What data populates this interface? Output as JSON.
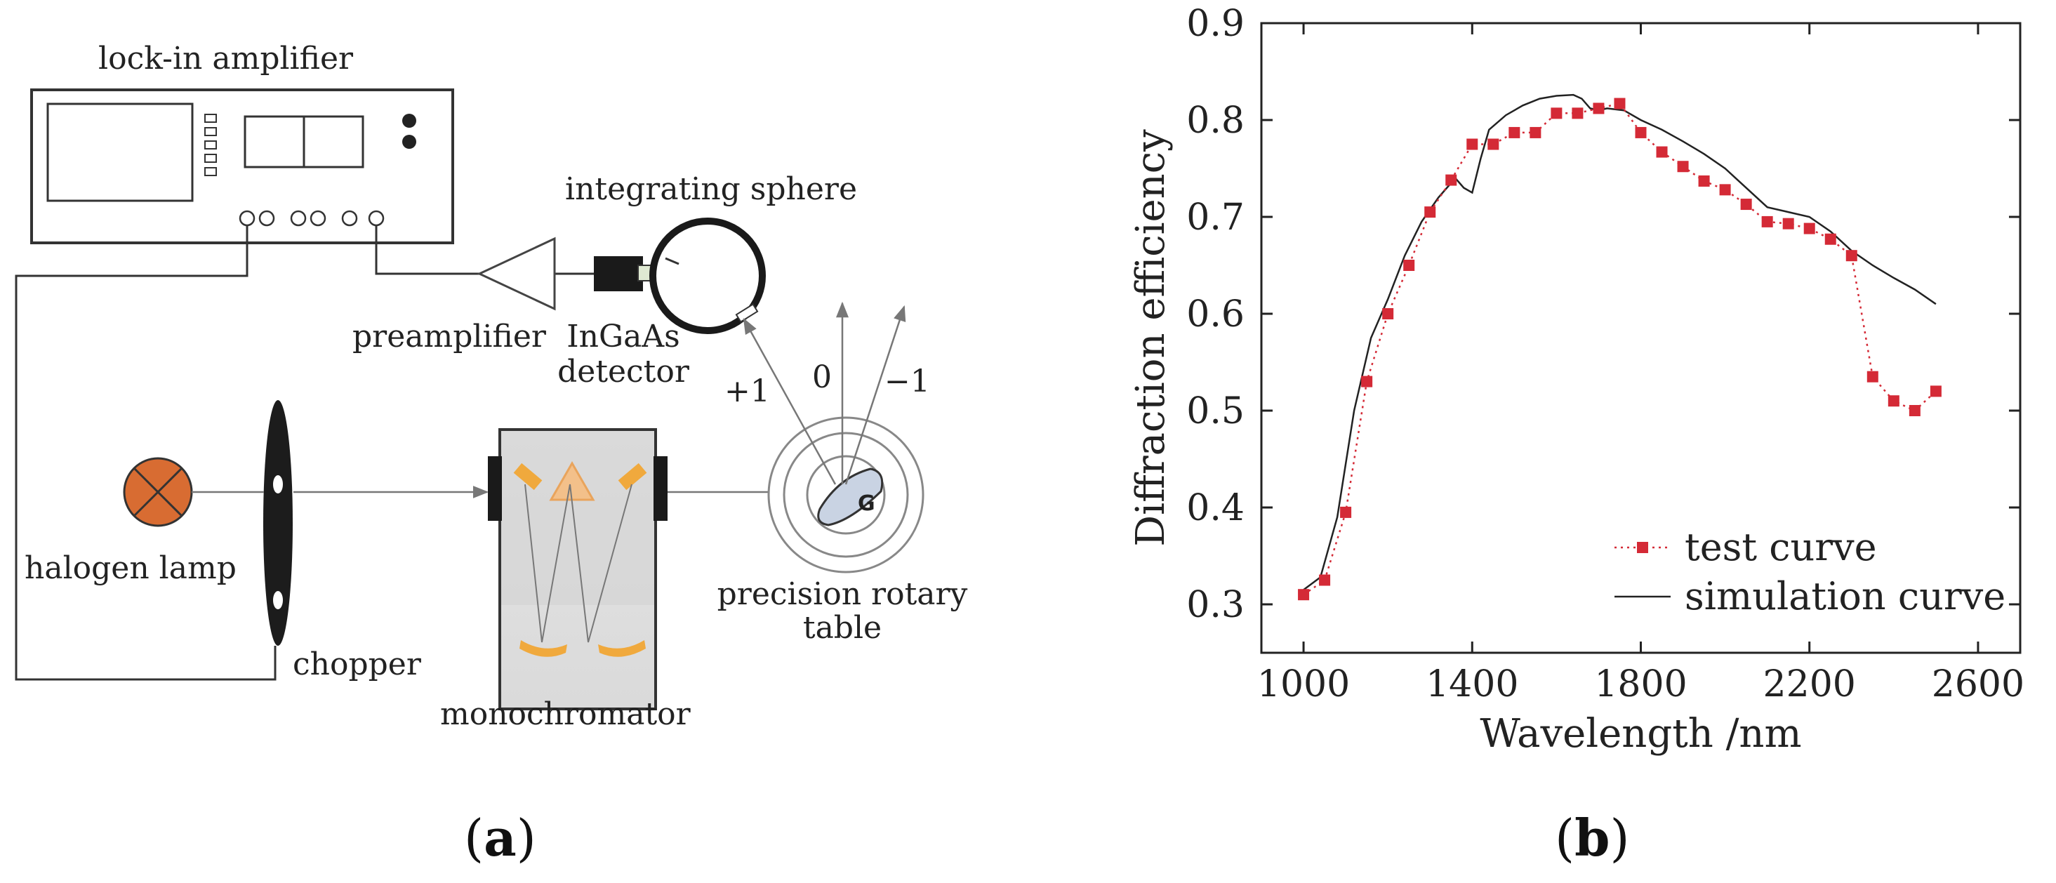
{
  "diagram": {
    "labels": {
      "lock_in_amplifier": "lock-in amplifier",
      "integrating_sphere": "integrating sphere",
      "preamplifier": "preamplifier",
      "ingaas_detector_1": "InGaAs",
      "ingaas_detector_2": "detector",
      "order_plus1": "+1",
      "order_0": "0",
      "order_minus1": "−1",
      "grating": "G",
      "halogen_lamp": "halogen lamp",
      "chopper": "chopper",
      "monochromator": "monochromator",
      "rotary_table_1": "precision rotary",
      "rotary_table_2": "table"
    }
  },
  "captions": {
    "a_open": "(",
    "a_letter": "a",
    "a_close": ")",
    "b_open": "(",
    "b_letter": "b",
    "b_close": ")"
  },
  "chart_data": {
    "type": "line",
    "title": "",
    "xlabel": "Wavelength /nm",
    "ylabel": "Diffraction efficiency",
    "xlim": [
      900,
      2700
    ],
    "ylim": [
      0.25,
      0.9
    ],
    "xticks": [
      1000,
      1400,
      1800,
      2200,
      2600
    ],
    "yticks": [
      0.3,
      0.4,
      0.5,
      0.6,
      0.7,
      0.8,
      0.9
    ],
    "xtick_labels": [
      "1000",
      "1400",
      "1800",
      "2200",
      "2600"
    ],
    "ytick_labels": [
      "0.3",
      "0.4",
      "0.5",
      "0.6",
      "0.7",
      "0.8",
      "0.9"
    ],
    "legend_position": "bottom-right",
    "series": [
      {
        "name": "test curve",
        "style": "dotted-square-markers",
        "color": "#d42a36",
        "x": [
          1000,
          1050,
          1100,
          1150,
          1200,
          1250,
          1300,
          1350,
          1400,
          1450,
          1500,
          1550,
          1600,
          1650,
          1700,
          1750,
          1800,
          1850,
          1900,
          1950,
          2000,
          2050,
          2100,
          2150,
          2200,
          2250,
          2300,
          2350,
          2400,
          2450,
          2500
        ],
        "y": [
          0.31,
          0.325,
          0.395,
          0.53,
          0.6,
          0.65,
          0.705,
          0.738,
          0.775,
          0.775,
          0.787,
          0.787,
          0.807,
          0.807,
          0.812,
          0.817,
          0.787,
          0.767,
          0.752,
          0.737,
          0.728,
          0.713,
          0.695,
          0.693,
          0.688,
          0.677,
          0.66,
          0.535,
          0.51,
          0.5,
          0.52
        ]
      },
      {
        "name": "simulation curve",
        "style": "solid",
        "color": "#222222",
        "x": [
          1000,
          1040,
          1080,
          1120,
          1160,
          1200,
          1240,
          1280,
          1320,
          1360,
          1380,
          1400,
          1420,
          1440,
          1480,
          1520,
          1560,
          1600,
          1640,
          1660,
          1680,
          1700,
          1720,
          1760,
          1800,
          1850,
          1900,
          1950,
          2000,
          2050,
          2100,
          2150,
          2200,
          2250,
          2300,
          2350,
          2400,
          2450,
          2500
        ],
        "y": [
          0.315,
          0.328,
          0.39,
          0.5,
          0.575,
          0.615,
          0.66,
          0.695,
          0.72,
          0.74,
          0.73,
          0.725,
          0.76,
          0.79,
          0.805,
          0.815,
          0.822,
          0.825,
          0.826,
          0.822,
          0.812,
          0.81,
          0.812,
          0.81,
          0.8,
          0.79,
          0.778,
          0.765,
          0.75,
          0.73,
          0.71,
          0.705,
          0.7,
          0.685,
          0.665,
          0.65,
          0.637,
          0.625,
          0.61
        ]
      }
    ]
  }
}
